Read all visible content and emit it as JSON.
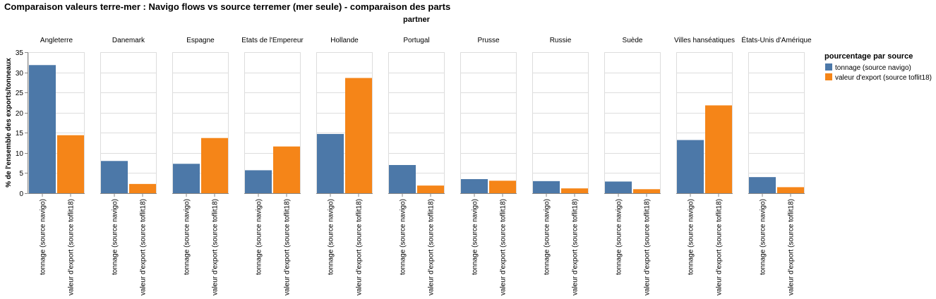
{
  "chart_data": {
    "type": "bar",
    "title": "Comparaison valeurs terre-mer : Navigo flows vs source terremer (mer seule) - comparaison des parts",
    "facet_title": "partner",
    "ylabel": "% de l'ensemble des exports/tonneaux",
    "ylim": [
      0,
      35
    ],
    "yticks": [
      "0",
      "5",
      "10",
      "15",
      "20",
      "25",
      "30",
      "35"
    ],
    "grid": true,
    "categories": [
      "tonnage (source navigo)",
      "valeur d'export (source toflit18)"
    ],
    "legend": {
      "title": "pourcentage par source",
      "placement": "right",
      "entries": [
        {
          "label": "tonnage (source navigo)",
          "color": "#4c78a8"
        },
        {
          "label": "valeur d'export (source toflit18)",
          "color": "#f58518"
        }
      ]
    },
    "facets": [
      {
        "partner": "Angleterre",
        "values": [
          31.8,
          14.4
        ]
      },
      {
        "partner": "Danemark",
        "values": [
          8.0,
          2.3
        ]
      },
      {
        "partner": "Espagne",
        "values": [
          7.3,
          13.7
        ]
      },
      {
        "partner": "Etats de l'Empereur",
        "values": [
          5.7,
          11.6
        ]
      },
      {
        "partner": "Hollande",
        "values": [
          14.7,
          28.6
        ]
      },
      {
        "partner": "Portugal",
        "values": [
          7.0,
          1.9
        ]
      },
      {
        "partner": "Prusse",
        "values": [
          3.5,
          3.1
        ]
      },
      {
        "partner": "Russie",
        "values": [
          3.0,
          1.2
        ]
      },
      {
        "partner": "Suède",
        "values": [
          2.9,
          1.0
        ]
      },
      {
        "partner": "Villes hanséatiques",
        "values": [
          13.2,
          21.8
        ]
      },
      {
        "partner": "États-Unis d'Amérique",
        "values": [
          4.0,
          1.5
        ]
      }
    ]
  }
}
